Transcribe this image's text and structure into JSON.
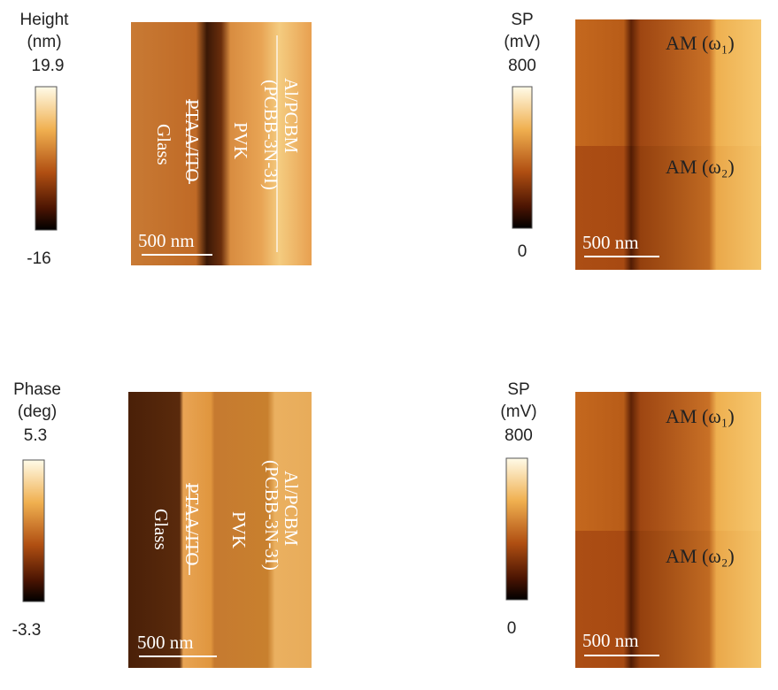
{
  "panels": [
    {
      "colorbar": {
        "title": "Height",
        "unit": "(nm)",
        "max": 19.9,
        "min": -16
      },
      "image": {
        "left": "Glass",
        "mid_left": "PTAA/ITO",
        "mid": "PVK",
        "right_top": "Al/PCBM",
        "right_bottom": "(PCBB-3N-3I)",
        "scale_bar": "500 nm"
      }
    },
    {
      "colorbar": {
        "title": "SP",
        "unit": "(mV)",
        "max": 800,
        "min": 0
      },
      "image": {
        "top_label": "AM (ω₁)",
        "bottom_label": "AM (ω₂)",
        "scale_bar": "500 nm"
      }
    },
    {
      "colorbar": {
        "title": "Phase",
        "unit": "(deg)",
        "max": 5.3,
        "min": -3.3
      },
      "image": {
        "left": "Glass",
        "mid_left": "PTAA/ITO",
        "mid": "PVK",
        "right_top": "Al/PCBM",
        "right_bottom": "(PCBB-3N-3I)",
        "scale_bar": "500 nm"
      }
    },
    {
      "colorbar": {
        "title": "SP",
        "unit": "(mV)",
        "max": 800,
        "min": 0
      },
      "image": {
        "top_label": "AM (ω₁)",
        "bottom_label": "AM (ω₂)",
        "scale_bar": "500 nm"
      }
    }
  ]
}
